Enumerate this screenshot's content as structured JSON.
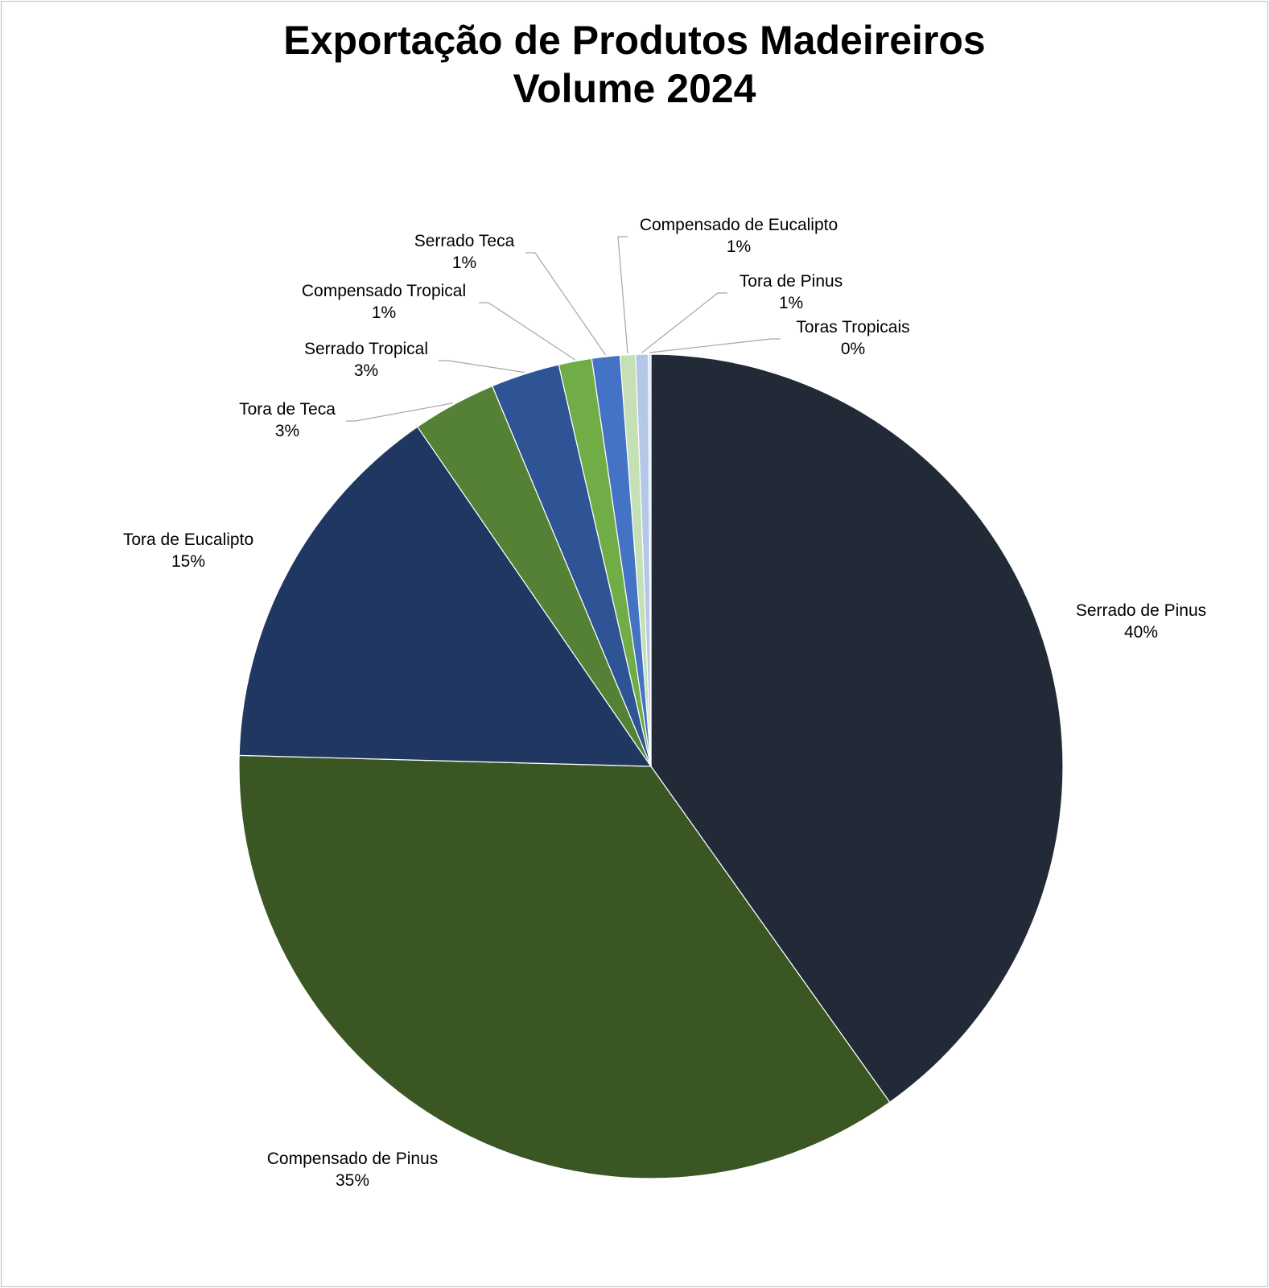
{
  "chart_data": {
    "type": "pie",
    "title": "Exportação de Produtos Madeireiros",
    "subtitle": "Volume 2024",
    "slices": [
      {
        "label": "Serrado de Pinus",
        "value_label": "40%",
        "value": 40.2,
        "color": "#222937"
      },
      {
        "label": "Compensado de Pinus",
        "value_label": "35%",
        "value": 35.3,
        "color": "#3a5623"
      },
      {
        "label": "Tora de Eucalipto",
        "value_label": "15%",
        "value": 15.0,
        "color": "#203762"
      },
      {
        "label": "Tora de Teca",
        "value_label": "3%",
        "value": 3.3,
        "color": "#548135"
      },
      {
        "label": "Serrado Tropical",
        "value_label": "3%",
        "value": 2.7,
        "color": "#2e5496"
      },
      {
        "label": "Compensado Tropical",
        "value_label": "1%",
        "value": 1.3,
        "color": "#70ad47"
      },
      {
        "label": "Serrado Teca",
        "value_label": "1%",
        "value": 1.1,
        "color": "#4472c4"
      },
      {
        "label": "Compensado de Eucalipto",
        "value_label": "1%",
        "value": 0.6,
        "color": "#c5e0b4"
      },
      {
        "label": "Tora de Pinus",
        "value_label": "1%",
        "value": 0.5,
        "color": "#b4c7e7"
      },
      {
        "label": "Toras Tropicais",
        "value_label": "0%",
        "value": 0.1,
        "color": "#dae3f3"
      }
    ],
    "start_angle": "12 o'clock",
    "direction": "clockwise",
    "legend": "none",
    "leader_line_color": "#a6a6a6"
  }
}
